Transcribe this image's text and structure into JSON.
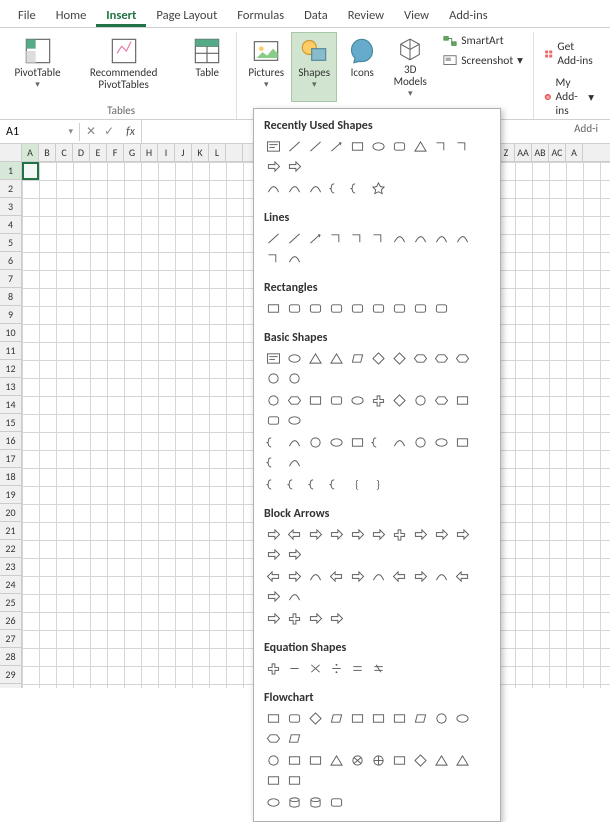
{
  "tabs": [
    "File",
    "Home",
    "Insert",
    "Page Layout",
    "Formulas",
    "Data",
    "Review",
    "View",
    "Add-ins"
  ],
  "active_tab": 2,
  "ribbon": {
    "tables": {
      "label": "Tables",
      "pivot": "PivotTable",
      "recpivot": "Recommended PivotTables",
      "table": "Table"
    },
    "illus": {
      "pictures": "Pictures",
      "shapes": "Shapes",
      "icons": "Icons",
      "models": "3D Models"
    },
    "smartart": "SmartArt",
    "screenshot": "Screenshot",
    "getaddins": "Get Add-ins",
    "myaddins": "My Add-ins",
    "addins_label": "Add-i"
  },
  "namebox": "A1",
  "cols": [
    "A",
    "B",
    "C",
    "D",
    "E",
    "F",
    "G",
    "H",
    "I",
    "J",
    "K",
    "L",
    "",
    "",
    "",
    "",
    "",
    "",
    "",
    "",
    "",
    "",
    "",
    "",
    "",
    "",
    "",
    "",
    "Z",
    "AA",
    "AB",
    "AC",
    "A"
  ],
  "rows": 29,
  "shapes_menu": {
    "recent": {
      "title": "Recently Used Shapes",
      "count_r1": 12,
      "count_r2": 6
    },
    "lines": {
      "title": "Lines",
      "count": 12
    },
    "rects": {
      "title": "Rectangles",
      "count": 9
    },
    "basic": {
      "title": "Basic Shapes",
      "r": [
        12,
        12,
        12,
        7
      ]
    },
    "arrows": {
      "title": "Block Arrows",
      "r": [
        12,
        12,
        4
      ]
    },
    "eq": {
      "title": "Equation Shapes",
      "count": 6
    },
    "flow": {
      "title": "Flowchart",
      "r": [
        12,
        12,
        4
      ]
    }
  },
  "colors": {
    "accent": "#217346",
    "highlight": "#d60000"
  }
}
